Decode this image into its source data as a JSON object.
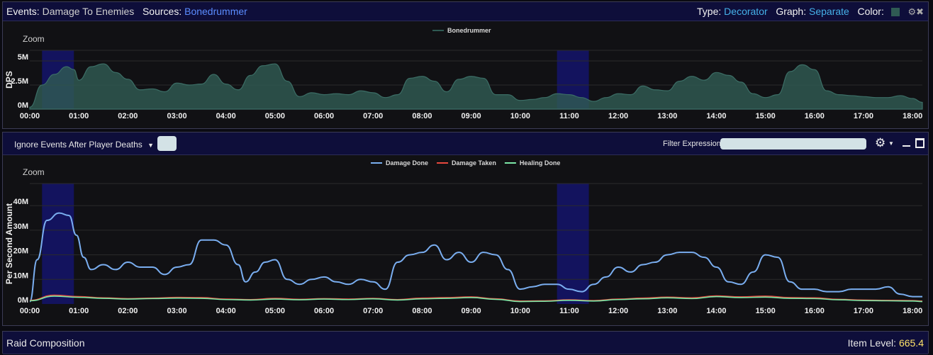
{
  "top_header": {
    "events_label": "Events:",
    "events_value": "Damage To Enemies",
    "sources_label": "Sources:",
    "sources_value": "Bonedrummer",
    "type_label": "Type:",
    "type_value": "Decorator",
    "graph_label": "Graph:",
    "graph_value": "Separate",
    "color_label": "Color:",
    "swatch_color": "#2f5a53",
    "icons": [
      "gear-icon",
      "close-icon"
    ]
  },
  "middle_toolbar": {
    "dropdown_label": "Ignore Events After Player Deaths",
    "filter_label": "Filter Expression:",
    "filter_value": "",
    "icons": [
      "gear-icon",
      "chevron-down-icon",
      "minimize-icon",
      "maximize-icon"
    ]
  },
  "footer": {
    "title": "Raid Composition",
    "item_level_label": "Item Level:",
    "item_level_value": "665.4"
  },
  "chart_data": [
    {
      "type": "area",
      "zoom_label": "Zoom",
      "ylabel": "DPS",
      "xlabel": "",
      "x_ticks": [
        "00:00",
        "01:00",
        "02:00",
        "03:00",
        "04:00",
        "05:00",
        "06:00",
        "07:00",
        "08:00",
        "09:00",
        "10:00",
        "11:00",
        "12:00",
        "13:00",
        "14:00",
        "15:00",
        "16:00",
        "17:00",
        "18:00"
      ],
      "y_ticks": [
        "0M",
        "2.5M",
        "5M"
      ],
      "ylim": [
        0,
        6.1
      ],
      "xlim_minutes": [
        0,
        18.2
      ],
      "highlight_ranges_minutes": [
        [
          0.25,
          0.9
        ],
        [
          10.75,
          11.4
        ]
      ],
      "legend_position": "top-center",
      "series": [
        {
          "name": "Bonedrummer",
          "color": "#2f5a53",
          "x_minutes": [
            0,
            0.25,
            0.5,
            0.75,
            0.9,
            1.0,
            1.25,
            1.5,
            1.75,
            2.0,
            2.25,
            2.5,
            2.75,
            3.0,
            3.25,
            3.5,
            3.75,
            4.0,
            4.25,
            4.5,
            4.75,
            5.0,
            5.25,
            5.5,
            5.75,
            6.0,
            6.25,
            6.5,
            6.75,
            7.0,
            7.25,
            7.5,
            7.75,
            8.0,
            8.25,
            8.5,
            8.75,
            9.0,
            9.25,
            9.5,
            9.75,
            10.0,
            10.25,
            10.5,
            10.75,
            11.0,
            11.25,
            11.5,
            11.75,
            12.0,
            12.25,
            12.5,
            12.75,
            13.0,
            13.25,
            13.5,
            13.75,
            14.0,
            14.25,
            14.5,
            14.75,
            15.0,
            15.25,
            15.5,
            15.75,
            16.0,
            16.25,
            16.5,
            16.75,
            17.0,
            17.25,
            17.5,
            17.75,
            18.0,
            18.2
          ],
          "values_millions": [
            0.2,
            2.5,
            3.6,
            4.4,
            4.1,
            3.0,
            4.4,
            4.7,
            3.8,
            3.1,
            2.0,
            2.1,
            1.8,
            2.7,
            2.5,
            2.6,
            3.6,
            2.6,
            2.0,
            3.5,
            4.5,
            4.7,
            2.9,
            1.3,
            1.7,
            1.5,
            1.6,
            1.5,
            1.9,
            1.7,
            1.2,
            1.5,
            3.2,
            3.4,
            2.9,
            1.8,
            3.1,
            3.4,
            3.2,
            1.5,
            1.5,
            0.9,
            1.0,
            1.2,
            1.6,
            1.5,
            1.2,
            0.8,
            1.2,
            1.6,
            1.5,
            2.4,
            2.0,
            1.9,
            2.9,
            3.4,
            3.0,
            3.8,
            3.5,
            2.8,
            1.6,
            1.2,
            1.5,
            3.9,
            4.6,
            4.1,
            1.9,
            1.5,
            1.4,
            1.3,
            1.2,
            1.2,
            1.4,
            1.1,
            0.7
          ]
        }
      ]
    },
    {
      "type": "line",
      "zoom_label": "Zoom",
      "ylabel": "Per Second Amount",
      "xlabel": "",
      "x_ticks": [
        "00:00",
        "01:00",
        "02:00",
        "03:00",
        "04:00",
        "05:00",
        "06:00",
        "07:00",
        "08:00",
        "09:00",
        "10:00",
        "11:00",
        "12:00",
        "13:00",
        "14:00",
        "15:00",
        "16:00",
        "17:00",
        "18:00"
      ],
      "y_ticks": [
        "0M",
        "10M",
        "20M",
        "30M",
        "40M"
      ],
      "ylim": [
        0,
        49
      ],
      "xlim_minutes": [
        0,
        18.2
      ],
      "highlight_ranges_minutes": [
        [
          0.25,
          0.9
        ],
        [
          10.75,
          11.4
        ]
      ],
      "legend_position": "top-center",
      "series": [
        {
          "name": "Damage Done",
          "color": "#7aaef0",
          "x_minutes": [
            0,
            0.15,
            0.35,
            0.6,
            0.8,
            0.95,
            1.1,
            1.25,
            1.5,
            1.75,
            2.0,
            2.25,
            2.5,
            2.75,
            3.0,
            3.25,
            3.5,
            3.75,
            4.0,
            4.25,
            4.4,
            4.6,
            4.8,
            5.0,
            5.25,
            5.5,
            5.75,
            6.0,
            6.25,
            6.5,
            6.75,
            7.0,
            7.25,
            7.5,
            7.75,
            8.0,
            8.25,
            8.5,
            8.75,
            9.0,
            9.25,
            9.5,
            9.75,
            10.0,
            10.25,
            10.5,
            10.75,
            11.0,
            11.25,
            11.5,
            11.75,
            12.0,
            12.25,
            12.5,
            12.75,
            13.0,
            13.25,
            13.5,
            13.75,
            14.0,
            14.25,
            14.5,
            14.75,
            15.0,
            15.25,
            15.5,
            15.75,
            16.0,
            16.25,
            16.5,
            16.75,
            17.0,
            17.25,
            17.5,
            17.75,
            18.0,
            18.2
          ],
          "values_millions": [
            1,
            18,
            34,
            37,
            36,
            28,
            19,
            14,
            16,
            14,
            17,
            15,
            15,
            12,
            15,
            16,
            26,
            26,
            24,
            16,
            9,
            13,
            17,
            18,
            10,
            8,
            10,
            11,
            9,
            8,
            10,
            9,
            6,
            17,
            20,
            21,
            24,
            18,
            21,
            17,
            21,
            20,
            14,
            6,
            7,
            8,
            8,
            6,
            5,
            8,
            11,
            15,
            13,
            16,
            17,
            20,
            21,
            21,
            19,
            15,
            9,
            8,
            13,
            20,
            19,
            9,
            6,
            6,
            5,
            5,
            6,
            6,
            6,
            7,
            4,
            3,
            3
          ],
          "stroke_width": 2
        },
        {
          "name": "Damage Taken",
          "color": "#e8483e",
          "x_minutes": [
            0,
            0.5,
            1.0,
            1.5,
            2.0,
            2.5,
            3.0,
            3.5,
            4.0,
            4.5,
            5.0,
            5.5,
            6.0,
            6.5,
            7.0,
            7.5,
            8.0,
            8.5,
            9.0,
            9.5,
            10.0,
            10.5,
            11.0,
            11.5,
            12.0,
            12.5,
            13.0,
            13.5,
            14.0,
            14.5,
            15.0,
            15.5,
            16.0,
            16.5,
            17.0,
            17.5,
            18.0,
            18.2
          ],
          "values_millions": [
            1.5,
            3.6,
            3.0,
            2.5,
            2.2,
            2.4,
            2.7,
            2.6,
            2.0,
            1.8,
            2.3,
            1.9,
            2.2,
            2.0,
            2.3,
            1.8,
            2.4,
            2.6,
            2.9,
            2.1,
            1.2,
            1.3,
            1.7,
            1.4,
            2.0,
            2.4,
            2.8,
            2.5,
            3.3,
            2.9,
            3.2,
            2.6,
            2.5,
            1.9,
            1.6,
            1.5,
            1.4,
            1.2
          ]
        },
        {
          "name": "Healing Done",
          "color": "#7ce8a7",
          "x_minutes": [
            0,
            0.5,
            1.0,
            1.5,
            2.0,
            2.5,
            3.0,
            3.5,
            4.0,
            4.5,
            5.0,
            5.5,
            6.0,
            6.5,
            7.0,
            7.5,
            8.0,
            8.5,
            9.0,
            9.5,
            10.0,
            10.5,
            11.0,
            11.5,
            12.0,
            12.5,
            13.0,
            13.5,
            14.0,
            14.5,
            15.0,
            15.5,
            16.0,
            16.5,
            17.0,
            17.5,
            18.0,
            18.2
          ],
          "values_millions": [
            1.3,
            3.2,
            2.7,
            2.3,
            2.0,
            2.2,
            2.4,
            2.3,
            1.8,
            1.6,
            2.0,
            1.7,
            2.0,
            1.8,
            2.1,
            1.6,
            2.1,
            2.3,
            2.6,
            1.9,
            1.0,
            1.1,
            1.5,
            1.2,
            1.8,
            2.1,
            2.5,
            2.2,
            3.0,
            2.6,
            2.8,
            2.3,
            2.2,
            1.7,
            1.4,
            1.3,
            1.2,
            1.0
          ]
        }
      ]
    }
  ]
}
